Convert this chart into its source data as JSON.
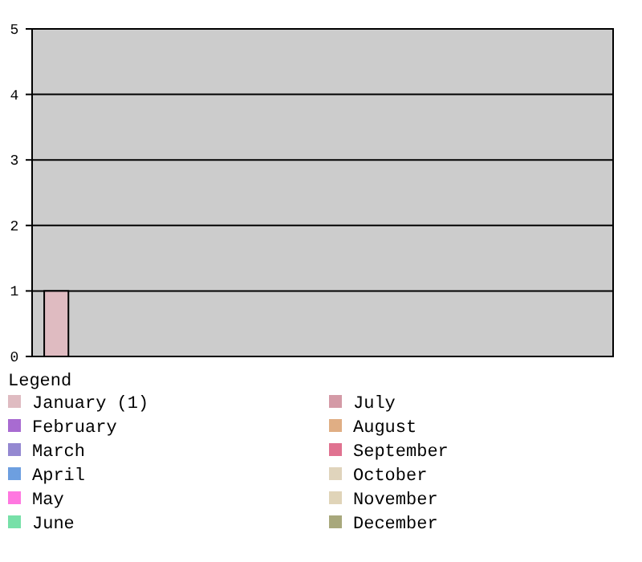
{
  "chart_data": {
    "type": "bar",
    "legend_title": "Legend",
    "categories": [
      null,
      null,
      null,
      null,
      null,
      null,
      null,
      null,
      null,
      null,
      null,
      null
    ],
    "series": [
      {
        "name": "January (1)",
        "color": "#dfbbc1",
        "values": [
          1,
          null,
          null,
          null,
          null,
          null,
          null,
          null,
          null,
          null,
          null,
          null
        ]
      },
      {
        "name": "February",
        "color": "#a86bd1",
        "values": [
          null,
          0,
          null,
          null,
          null,
          null,
          null,
          null,
          null,
          null,
          null,
          null
        ]
      },
      {
        "name": "March",
        "color": "#9488d1",
        "values": [
          null,
          null,
          0,
          null,
          null,
          null,
          null,
          null,
          null,
          null,
          null,
          null
        ]
      },
      {
        "name": "April",
        "color": "#6d9fe0",
        "values": [
          null,
          null,
          null,
          0,
          null,
          null,
          null,
          null,
          null,
          null,
          null,
          null
        ]
      },
      {
        "name": "May",
        "color": "#ff77e0",
        "values": [
          null,
          null,
          null,
          null,
          0,
          null,
          null,
          null,
          null,
          null,
          null,
          null
        ]
      },
      {
        "name": "June",
        "color": "#77e0a8",
        "values": [
          null,
          null,
          null,
          null,
          null,
          0,
          null,
          null,
          null,
          null,
          null,
          null
        ]
      },
      {
        "name": "July",
        "color": "#d49aa6",
        "values": [
          null,
          null,
          null,
          null,
          null,
          null,
          0,
          null,
          null,
          null,
          null,
          null
        ]
      },
      {
        "name": "August",
        "color": "#e0ae84",
        "values": [
          null,
          null,
          null,
          null,
          null,
          null,
          null,
          0,
          null,
          null,
          null,
          null
        ]
      },
      {
        "name": "September",
        "color": "#e07290",
        "values": [
          null,
          null,
          null,
          null,
          null,
          null,
          null,
          null,
          0,
          null,
          null,
          null
        ]
      },
      {
        "name": "October",
        "color": "#e0d4bc",
        "values": [
          null,
          null,
          null,
          null,
          null,
          null,
          null,
          null,
          null,
          0,
          null,
          null
        ]
      },
      {
        "name": "November",
        "color": "#e0d4b8",
        "values": [
          null,
          null,
          null,
          null,
          null,
          null,
          null,
          null,
          null,
          null,
          0,
          null
        ]
      },
      {
        "name": "December",
        "color": "#a8a87c",
        "values": [
          null,
          null,
          null,
          null,
          null,
          null,
          null,
          null,
          null,
          null,
          null,
          0
        ]
      }
    ],
    "ylim": [
      0,
      5
    ],
    "yticks": [
      0,
      1,
      2,
      3,
      4,
      5
    ],
    "grid": "y",
    "legend": "bottom",
    "tick_labels": "y"
  }
}
